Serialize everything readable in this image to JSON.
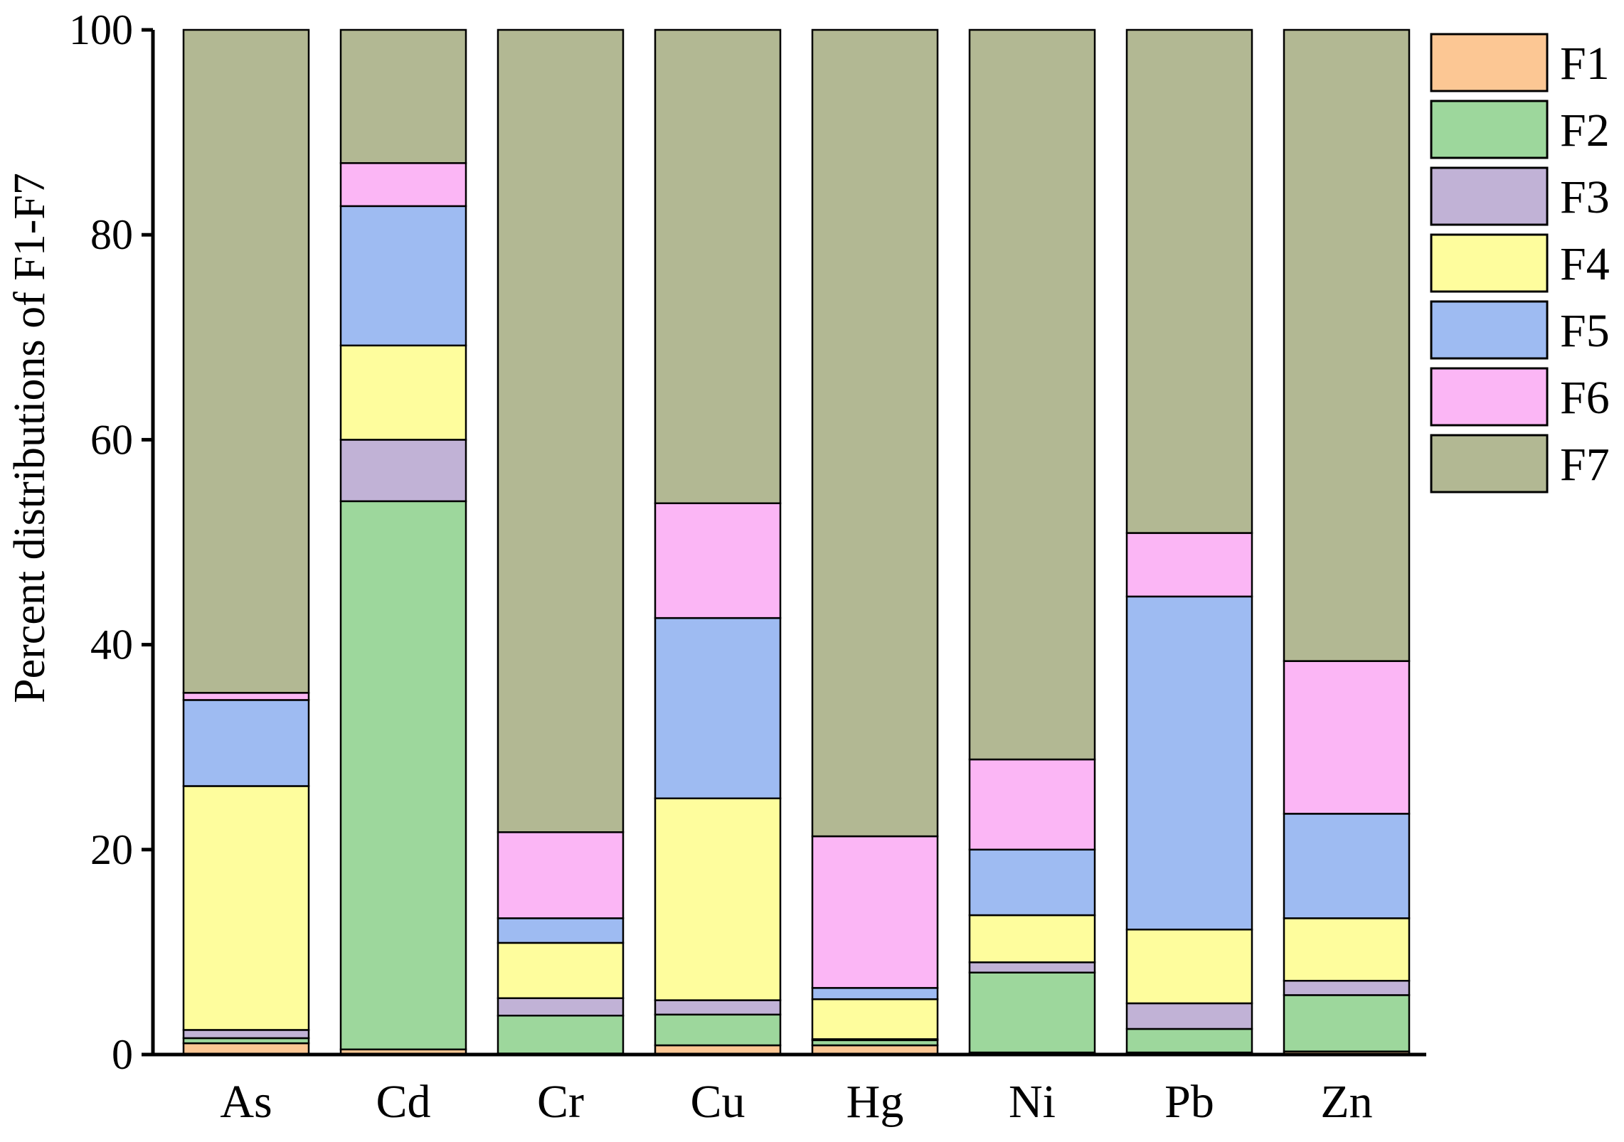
{
  "chart_data": {
    "type": "bar",
    "stacked": true,
    "title": "",
    "xlabel": "",
    "ylabel": "Percent distributions of F1-F7",
    "ylim": [
      0,
      100
    ],
    "yticks": [
      0,
      20,
      40,
      60,
      80,
      100
    ],
    "grid": false,
    "legend_position": "right",
    "categories": [
      "As",
      "Cd",
      "Cr",
      "Cu",
      "Hg",
      "Ni",
      "Pb",
      "Zn"
    ],
    "series": [
      {
        "name": "F1",
        "color": "#FCC794",
        "values": [
          1.1,
          0.5,
          0.1,
          0.9,
          0.9,
          0.2,
          0.2,
          0.3
        ]
      },
      {
        "name": "F2",
        "color": "#9DD79C",
        "values": [
          0.5,
          53.5,
          3.7,
          3.0,
          0.5,
          7.8,
          2.3,
          5.5
        ]
      },
      {
        "name": "F3",
        "color": "#C1B2D6",
        "values": [
          0.8,
          6.0,
          1.7,
          1.4,
          0.1,
          1.0,
          2.5,
          1.4
        ]
      },
      {
        "name": "F4",
        "color": "#FEFD9D",
        "values": [
          23.8,
          9.2,
          5.4,
          19.7,
          3.9,
          4.6,
          7.2,
          6.1
        ]
      },
      {
        "name": "F5",
        "color": "#9EBBF2",
        "values": [
          8.4,
          13.6,
          2.4,
          17.6,
          1.1,
          6.4,
          32.5,
          10.2
        ]
      },
      {
        "name": "F6",
        "color": "#FBB6F5",
        "values": [
          0.7,
          4.2,
          8.4,
          11.2,
          14.8,
          8.8,
          6.2,
          14.9
        ]
      },
      {
        "name": "F7",
        "color": "#B2B893",
        "values": [
          64.7,
          13.0,
          78.3,
          46.2,
          78.7,
          71.2,
          49.1,
          61.6
        ]
      }
    ]
  }
}
